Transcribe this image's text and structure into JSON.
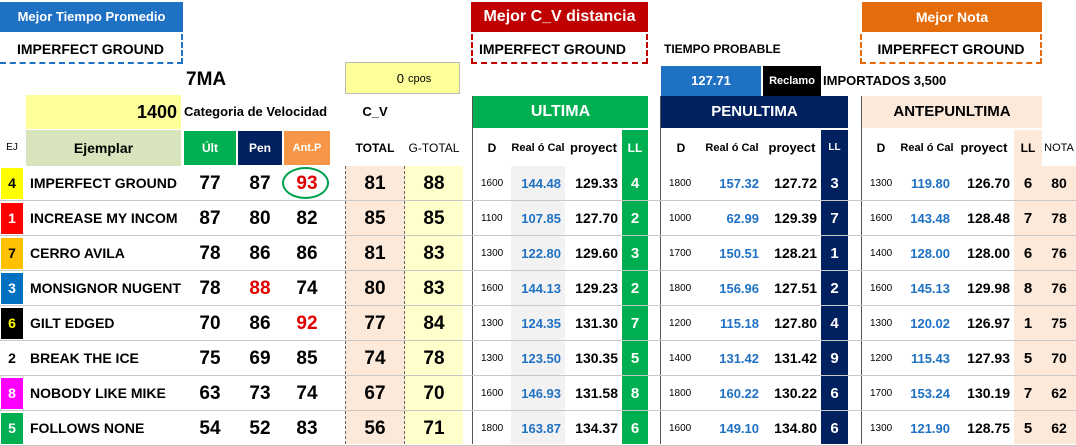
{
  "top": {
    "mejor_tiempo_label": "Mejor Tiempo Promedio",
    "mejor_tiempo_horse": "IMPERFECT GROUND",
    "mejor_cv_label": "Mejor C_V distancia",
    "mejor_cv_horse": "IMPERFECT GROUND",
    "tiempo_probable_label": "TIEMPO PROBABLE",
    "mejor_nota_label": "Mejor Nota",
    "mejor_nota_horse": "IMPERFECT GROUND",
    "race": "7MA",
    "cpos_value": "0",
    "cpos_unit": "cpos",
    "tiempo_value": "127.71",
    "reclamo_label": "Reclamo",
    "importados_label": "IMPORTADOS 3,500",
    "distance": "1400",
    "categoria_label": "Categoria de Velocidad",
    "cv_label": "C_V"
  },
  "sections": {
    "ultima": "ULTIMA",
    "penultima": "PENULTIMA",
    "antepunltima": "ANTEPUNLTIMA"
  },
  "headers": {
    "ej": "EJ",
    "ejemplar": "Ejemplar",
    "ult": "Últ",
    "pen": "Pen",
    "antp": "Ant.P",
    "total": "TOTAL",
    "gtotal": "G-TOTAL",
    "d": "D",
    "real": "Real ó Cal",
    "proyect": "proyect",
    "ll": "LL",
    "nota": "NOTA"
  },
  "colors": {
    "green": "#00b050",
    "navy": "#002060",
    "orange": "#f79646",
    "yellow": "#ffff99",
    "peach": "#fde9d9",
    "blue": "#1f71c4"
  },
  "rows": [
    {
      "ej": "4",
      "ej_bg": "#ffff00",
      "ej_color": "#000000",
      "name": "IMPERFECT GROUND",
      "ult": "77",
      "pen": "87",
      "antp": "93",
      "total": "81",
      "gtotal": "88",
      "u_d": "1600",
      "u_real": "144.48",
      "u_proy": "129.33",
      "u_ll": "4",
      "p_d": "1800",
      "p_real": "157.32",
      "p_proy": "127.72",
      "p_ll": "3",
      "a_d": "1300",
      "a_real": "119.80",
      "a_proy": "126.70",
      "a_ll": "6",
      "nota": "80"
    },
    {
      "ej": "1",
      "ej_bg": "#ff0000",
      "ej_color": "#ffffff",
      "name": "INCREASE MY INCOM",
      "ult": "87",
      "pen": "80",
      "antp": "82",
      "total": "85",
      "gtotal": "85",
      "u_d": "1100",
      "u_real": "107.85",
      "u_proy": "127.70",
      "u_ll": "2",
      "p_d": "1000",
      "p_real": "62.99",
      "p_proy": "129.39",
      "p_ll": "7",
      "a_d": "1600",
      "a_real": "143.48",
      "a_proy": "128.48",
      "a_ll": "7",
      "nota": "78"
    },
    {
      "ej": "7",
      "ej_bg": "#ffc000",
      "ej_color": "#000000",
      "name": "CERRO AVILA",
      "ult": "78",
      "pen": "86",
      "antp": "86",
      "total": "81",
      "gtotal": "83",
      "u_d": "1300",
      "u_real": "122.80",
      "u_proy": "129.60",
      "u_ll": "3",
      "p_d": "1700",
      "p_real": "150.51",
      "p_proy": "128.21",
      "p_ll": "1",
      "a_d": "1400",
      "a_real": "128.00",
      "a_proy": "128.00",
      "a_ll": "6",
      "nota": "76"
    },
    {
      "ej": "3",
      "ej_bg": "#0070c0",
      "ej_color": "#ffffff",
      "name": "MONSIGNOR NUGENT",
      "ult": "78",
      "pen": "88",
      "antp": "74",
      "total": "80",
      "gtotal": "83",
      "u_d": "1600",
      "u_real": "144.13",
      "u_proy": "129.23",
      "u_ll": "2",
      "p_d": "1800",
      "p_real": "156.96",
      "p_proy": "127.51",
      "p_ll": "2",
      "a_d": "1600",
      "a_real": "145.13",
      "a_proy": "129.98",
      "a_ll": "8",
      "nota": "76"
    },
    {
      "ej": "6",
      "ej_bg": "#000000",
      "ej_color": "#ffff00",
      "name": "GILT EDGED",
      "ult": "70",
      "pen": "86",
      "antp": "92",
      "total": "77",
      "gtotal": "84",
      "u_d": "1300",
      "u_real": "124.35",
      "u_proy": "131.30",
      "u_ll": "7",
      "p_d": "1200",
      "p_real": "115.18",
      "p_proy": "127.80",
      "p_ll": "4",
      "a_d": "1300",
      "a_real": "120.02",
      "a_proy": "126.97",
      "a_ll": "1",
      "nota": "75"
    },
    {
      "ej": "2",
      "ej_bg": "#ffffff",
      "ej_color": "#000000",
      "name": "BREAK THE ICE",
      "ult": "75",
      "pen": "69",
      "antp": "85",
      "total": "74",
      "gtotal": "78",
      "u_d": "1300",
      "u_real": "123.50",
      "u_proy": "130.35",
      "u_ll": "5",
      "p_d": "1400",
      "p_real": "131.42",
      "p_proy": "131.42",
      "p_ll": "9",
      "a_d": "1200",
      "a_real": "115.43",
      "a_proy": "127.93",
      "a_ll": "5",
      "nota": "70"
    },
    {
      "ej": "8",
      "ej_bg": "#ff00ff",
      "ej_color": "#ffffff",
      "name": "NOBODY LIKE MIKE",
      "ult": "63",
      "pen": "73",
      "antp": "74",
      "total": "67",
      "gtotal": "70",
      "u_d": "1600",
      "u_real": "146.93",
      "u_proy": "131.58",
      "u_ll": "8",
      "p_d": "1800",
      "p_real": "160.22",
      "p_proy": "130.22",
      "p_ll": "6",
      "a_d": "1700",
      "a_real": "153.24",
      "a_proy": "130.19",
      "a_ll": "7",
      "nota": "62"
    },
    {
      "ej": "5",
      "ej_bg": "#00b050",
      "ej_color": "#ffffff",
      "name": "FOLLOWS NONE",
      "ult": "54",
      "pen": "52",
      "antp": "83",
      "total": "56",
      "gtotal": "71",
      "u_d": "1800",
      "u_real": "163.87",
      "u_proy": "134.37",
      "u_ll": "6",
      "p_d": "1600",
      "p_real": "149.10",
      "p_proy": "134.80",
      "p_ll": "6",
      "a_d": "1300",
      "a_real": "121.90",
      "a_proy": "128.75",
      "a_ll": "5",
      "nota": "62"
    }
  ]
}
